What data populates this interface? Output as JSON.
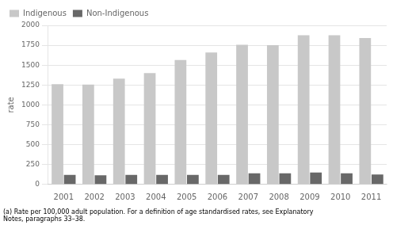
{
  "chart_data": {
    "type": "bar",
    "ylabel": "rate",
    "categories": [
      "2001",
      "2002",
      "2003",
      "2004",
      "2005",
      "2006",
      "2007",
      "2008",
      "2009",
      "2010",
      "2011"
    ],
    "series": [
      {
        "name": "Indigenous",
        "color": "#c8c8c8",
        "values": [
          1260,
          1255,
          1330,
          1400,
          1565,
          1660,
          1755,
          1750,
          1875,
          1875,
          1840
        ]
      },
      {
        "name": "Non-Indigenous",
        "color": "#686868",
        "values": [
          120,
          115,
          120,
          120,
          120,
          120,
          140,
          140,
          150,
          140,
          125
        ]
      }
    ],
    "ylim": [
      0,
      2000
    ],
    "yticks": [
      0,
      250,
      500,
      750,
      1000,
      1250,
      1500,
      1750,
      2000
    ],
    "grid": true,
    "legend": "upper left",
    "annotations": [
      "(a) Rate per 100,000 adult population. For a definition of age standardised rates, see Explanatory\nNotes, paragraphs 33–38."
    ]
  }
}
